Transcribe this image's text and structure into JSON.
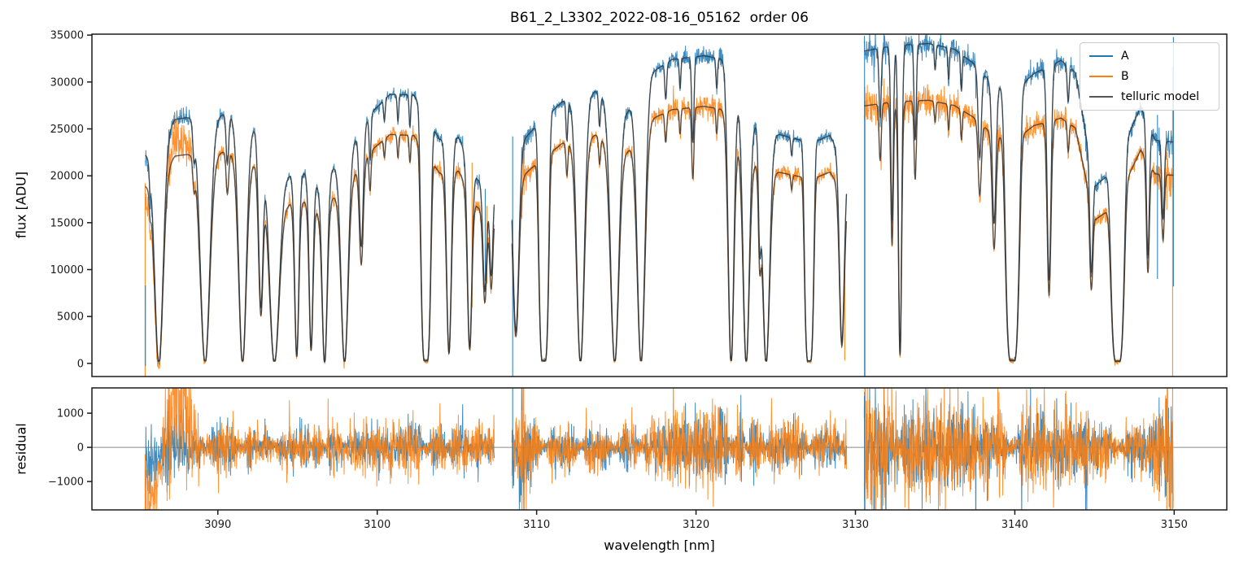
{
  "figure": {
    "title": "B61_2_L3302_2022-08-16_05162  order 06"
  },
  "chart_data": {
    "type": "line",
    "title": "B61_2_L3302_2022-08-16_05162  order 06",
    "xlabel": "wavelength [nm]",
    "xlim": [
      3082.1,
      3153.3
    ],
    "xticks": [
      3090,
      3100,
      3110,
      3120,
      3130,
      3140,
      3150
    ],
    "grid": false,
    "colors": {
      "A": "#1f77b4",
      "B": "#ff7f0e",
      "model": "#333333",
      "zero_line": "#8a8a8a",
      "axis": "#1a1a1a"
    },
    "legend": {
      "location": "upper right",
      "entries": [
        {
          "label": "A",
          "color": "#1f77b4"
        },
        {
          "label": "B",
          "color": "#ff7f0e"
        },
        {
          "label": "telluric model",
          "color": "#555555"
        }
      ]
    },
    "panels": [
      {
        "name": "flux",
        "ylabel": "flux [ADU]",
        "ylim": [
          -1400,
          35100
        ],
        "yticks": [
          0,
          5000,
          10000,
          15000,
          20000,
          25000,
          30000,
          35000
        ]
      },
      {
        "name": "residual",
        "ylabel": "residual",
        "ylim": [
          -1830,
          1740
        ],
        "yticks": [
          -1000,
          0,
          1000
        ],
        "zeroline": true
      }
    ],
    "series": [
      {
        "name": "A",
        "role": "observed spectrum, nod position A",
        "color": "#1f77b4"
      },
      {
        "name": "B",
        "role": "observed spectrum, nod position B",
        "color": "#ff7f0e"
      },
      {
        "name": "telluric model",
        "role": "smooth model over A and B",
        "color": "#555555"
      }
    ],
    "spectrum": {
      "segments": [
        [
          3085.45,
          3107.35
        ],
        [
          3108.45,
          3129.45
        ],
        [
          3130.55,
          3149.95
        ]
      ],
      "continuum_A": [
        [
          3085.45,
          22300
        ],
        [
          3086.0,
          22300
        ],
        [
          3087.3,
          26000
        ],
        [
          3088.4,
          26300
        ],
        [
          3089.8,
          26300
        ],
        [
          3090.5,
          26600
        ],
        [
          3091.2,
          26200
        ],
        [
          3092.2,
          25200
        ],
        [
          3093.2,
          24000
        ],
        [
          3094.4,
          20200
        ],
        [
          3095.4,
          20300
        ],
        [
          3096.3,
          19000
        ],
        [
          3097.4,
          21200
        ],
        [
          3098.6,
          23900
        ],
        [
          3099.8,
          27000
        ],
        [
          3100.8,
          28700
        ],
        [
          3102.3,
          28600
        ],
        [
          3103.9,
          23900
        ],
        [
          3105.1,
          24100
        ],
        [
          3106.3,
          19600
        ],
        [
          3107.35,
          18500
        ],
        [
          3108.45,
          22500
        ],
        [
          3109.7,
          24800
        ],
        [
          3111.6,
          27900
        ],
        [
          3113.7,
          29000
        ],
        [
          3115.7,
          27000
        ],
        [
          3117.2,
          31000
        ],
        [
          3118.5,
          32400
        ],
        [
          3120.5,
          32800
        ],
        [
          3121.8,
          32400
        ],
        [
          3122.6,
          29000
        ],
        [
          3123.7,
          25800
        ],
        [
          3125.0,
          24500
        ],
        [
          3126.1,
          24000
        ],
        [
          3127.3,
          23500
        ],
        [
          3128.4,
          24300
        ],
        [
          3129.45,
          21000
        ],
        [
          3130.55,
          33300
        ],
        [
          3132.5,
          33900
        ],
        [
          3134.6,
          34100
        ],
        [
          3136.2,
          33500
        ],
        [
          3137.4,
          32000
        ],
        [
          3138.6,
          29800
        ],
        [
          3140.0,
          29000
        ],
        [
          3141.2,
          30900
        ],
        [
          3142.9,
          32300
        ],
        [
          3143.8,
          31000
        ],
        [
          3144.5,
          24000
        ],
        [
          3145.1,
          19000
        ],
        [
          3145.8,
          20000
        ],
        [
          3146.3,
          21000
        ],
        [
          3147.9,
          27400
        ],
        [
          3148.8,
          23800
        ],
        [
          3149.95,
          23600
        ]
      ],
      "continuum_B": [
        [
          3085.45,
          18950
        ],
        [
          3086.0,
          18950
        ],
        [
          3087.3,
          22100
        ],
        [
          3088.4,
          22350
        ],
        [
          3089.8,
          22350
        ],
        [
          3090.5,
          22600
        ],
        [
          3091.2,
          22250
        ],
        [
          3092.2,
          21400
        ],
        [
          3093.2,
          20400
        ],
        [
          3094.4,
          17150
        ],
        [
          3095.4,
          17250
        ],
        [
          3096.3,
          16150
        ],
        [
          3097.4,
          18000
        ],
        [
          3098.6,
          20300
        ],
        [
          3099.8,
          22950
        ],
        [
          3100.8,
          24400
        ],
        [
          3102.3,
          24300
        ],
        [
          3103.9,
          20300
        ],
        [
          3105.1,
          20500
        ],
        [
          3106.3,
          16650
        ],
        [
          3107.35,
          15700
        ],
        [
          3108.45,
          18900
        ],
        [
          3109.7,
          20850
        ],
        [
          3111.6,
          23450
        ],
        [
          3113.7,
          24350
        ],
        [
          3115.7,
          22700
        ],
        [
          3117.2,
          26050
        ],
        [
          3118.5,
          27050
        ],
        [
          3120.5,
          27400
        ],
        [
          3121.8,
          27050
        ],
        [
          3122.6,
          24200
        ],
        [
          3123.7,
          21550
        ],
        [
          3125.0,
          20450
        ],
        [
          3126.1,
          20050
        ],
        [
          3127.3,
          19650
        ],
        [
          3128.4,
          20400
        ],
        [
          3129.45,
          17650
        ],
        [
          3130.55,
          27450
        ],
        [
          3132.5,
          27900
        ],
        [
          3134.6,
          28050
        ],
        [
          3136.2,
          27500
        ],
        [
          3137.4,
          26250
        ],
        [
          3138.6,
          24450
        ],
        [
          3140.0,
          23800
        ],
        [
          3141.2,
          25350
        ],
        [
          3142.9,
          26150
        ],
        [
          3143.8,
          25100
        ],
        [
          3144.5,
          19450
        ],
        [
          3145.1,
          15400
        ],
        [
          3145.8,
          16200
        ],
        [
          3146.3,
          17000
        ],
        [
          3147.9,
          22750
        ],
        [
          3148.8,
          20200
        ],
        [
          3149.95,
          20050
        ]
      ],
      "telluric_lines": [
        [
          3085.75,
          0.1,
          0.05,
          2
        ],
        [
          3086.3,
          1.0,
          0.26,
          2
        ],
        [
          3088.5,
          0.13,
          0.07,
          2
        ],
        [
          3089.2,
          1.0,
          0.3,
          2
        ],
        [
          3090.6,
          0.2,
          0.08,
          2
        ],
        [
          3091.55,
          1.0,
          0.24,
          2
        ],
        [
          3092.7,
          0.75,
          0.14,
          2
        ],
        [
          3093.55,
          1.0,
          0.32,
          2
        ],
        [
          3094.95,
          0.96,
          0.13,
          2
        ],
        [
          3095.85,
          0.92,
          0.12,
          2
        ],
        [
          3096.7,
          1.0,
          0.16,
          2
        ],
        [
          3097.95,
          1.0,
          0.22,
          2
        ],
        [
          3099.0,
          0.5,
          0.12,
          2
        ],
        [
          3099.55,
          0.18,
          0.06,
          2
        ],
        [
          3100.45,
          0.08,
          0.05,
          2
        ],
        [
          3101.3,
          0.1,
          0.05,
          2
        ],
        [
          3102.05,
          0.12,
          0.05,
          2
        ],
        [
          3103.05,
          1.0,
          0.3,
          4
        ],
        [
          3104.5,
          0.95,
          0.15,
          2
        ],
        [
          3105.8,
          0.92,
          0.14,
          2
        ],
        [
          3106.75,
          0.6,
          0.12,
          2
        ],
        [
          3107.15,
          0.5,
          0.1,
          2
        ],
        [
          3108.7,
          0.85,
          0.18,
          2
        ],
        [
          3110.45,
          1.0,
          0.3,
          4
        ],
        [
          3111.9,
          0.15,
          0.06,
          2
        ],
        [
          3112.75,
          1.0,
          0.24,
          2
        ],
        [
          3113.95,
          0.12,
          0.06,
          2
        ],
        [
          3114.9,
          1.0,
          0.26,
          2
        ],
        [
          3116.55,
          1.0,
          0.24,
          2
        ],
        [
          3118.1,
          0.12,
          0.06,
          2
        ],
        [
          3119.0,
          0.1,
          0.05,
          2
        ],
        [
          3119.8,
          0.28,
          0.07,
          2
        ],
        [
          3121.3,
          0.1,
          0.05,
          2
        ],
        [
          3122.2,
          1.0,
          0.18,
          2
        ],
        [
          3123.15,
          1.0,
          0.2,
          2
        ],
        [
          3124.0,
          0.45,
          0.08,
          2
        ],
        [
          3124.4,
          1.0,
          0.22,
          2
        ],
        [
          3126.0,
          0.08,
          0.05,
          2
        ],
        [
          3127.1,
          1.0,
          0.28,
          4
        ],
        [
          3129.15,
          0.9,
          0.15,
          2
        ],
        [
          3131.55,
          0.22,
          0.07,
          2
        ],
        [
          3132.3,
          0.55,
          0.08,
          2
        ],
        [
          3132.8,
          0.97,
          0.1,
          2
        ],
        [
          3133.75,
          0.3,
          0.07,
          2
        ],
        [
          3135.0,
          0.08,
          0.05,
          2
        ],
        [
          3135.85,
          0.1,
          0.05,
          2
        ],
        [
          3136.65,
          0.12,
          0.05,
          2
        ],
        [
          3137.8,
          0.3,
          0.1,
          2
        ],
        [
          3138.7,
          0.5,
          0.12,
          2
        ],
        [
          3139.85,
          1.0,
          0.42,
          4
        ],
        [
          3142.15,
          0.72,
          0.12,
          2
        ],
        [
          3143.35,
          0.12,
          0.06,
          2
        ],
        [
          3144.8,
          0.55,
          0.1,
          2
        ],
        [
          3146.45,
          1.0,
          0.4,
          4
        ],
        [
          3148.35,
          0.55,
          0.09,
          2
        ],
        [
          3149.3,
          0.35,
          0.08,
          2
        ]
      ],
      "noise_sigma": {
        "A": 330,
        "B": 400
      },
      "noise_bursts": [
        {
          "c": 3087.2,
          "w": 1.0,
          "g": 2.2,
          "series": "B"
        },
        {
          "c": 3086.2,
          "w": 0.8,
          "g": 1.2,
          "series": "A"
        },
        {
          "c": 3108.9,
          "w": 0.5,
          "g": 1.5,
          "series": "both"
        },
        {
          "c": 3121.0,
          "w": 2.5,
          "g": 0.6,
          "series": "both"
        },
        {
          "c": 3131.2,
          "w": 0.8,
          "g": 1.6,
          "series": "both"
        },
        {
          "c": 3135.0,
          "w": 2.0,
          "g": 0.8,
          "series": "both"
        },
        {
          "c": 3141.5,
          "w": 3.0,
          "g": 0.7,
          "series": "both"
        },
        {
          "c": 3149.6,
          "w": 0.5,
          "g": 1.8,
          "series": "both"
        }
      ],
      "residual_ramp_B": [
        [
          3085.45,
          -1900
        ],
        [
          3086.0,
          -1300
        ],
        [
          3086.5,
          -400
        ],
        [
          3086.9,
          500
        ],
        [
          3087.3,
          1500
        ],
        [
          3087.9,
          1200
        ],
        [
          3088.4,
          400
        ],
        [
          3088.9,
          0
        ]
      ],
      "residual_ramp_A": [
        [
          3085.45,
          -800
        ],
        [
          3086.2,
          -300
        ],
        [
          3086.8,
          0
        ]
      ],
      "edge_spikes": [
        {
          "series": "B",
          "x": 3085.44,
          "flux": [
            -1400,
            19200
          ],
          "resid": [
            -1830,
            -200
          ]
        },
        {
          "series": "A",
          "x": 3085.46,
          "flux": [
            -300,
            8300
          ],
          "resid": null
        },
        {
          "series": "B",
          "x": 3105.95,
          "flux": [
            6000,
            21400
          ],
          "resid": null
        },
        {
          "series": "A",
          "x": 3106.78,
          "flux": [
            8800,
            18600
          ],
          "resid": null
        },
        {
          "series": "B",
          "x": 3106.88,
          "flux": [
            8500,
            16800
          ],
          "resid": null
        },
        {
          "series": "A",
          "x": 3108.5,
          "flux": [
            -1400,
            24200
          ],
          "resid": [
            -1200,
            1740
          ]
        },
        {
          "series": "B",
          "x": 3129.33,
          "flux": [
            300,
            10600
          ],
          "resid": null
        },
        {
          "series": "A",
          "x": 3130.57,
          "flux": [
            -1400,
            34300
          ],
          "resid": [
            -1830,
            1500
          ]
        },
        {
          "series": "B",
          "x": 3130.62,
          "flux": [
            -1400,
            28000
          ],
          "resid": [
            -1830,
            1740
          ]
        },
        {
          "series": "A",
          "x": 3148.95,
          "flux": [
            9000,
            26500
          ],
          "resid": null
        },
        {
          "series": "B",
          "x": 3149.9,
          "flux": [
            -1400,
            31600
          ],
          "resid": [
            -1830,
            1740
          ]
        },
        {
          "series": "A",
          "x": 3149.95,
          "flux": [
            8200,
            34800
          ],
          "resid": null
        }
      ]
    }
  }
}
